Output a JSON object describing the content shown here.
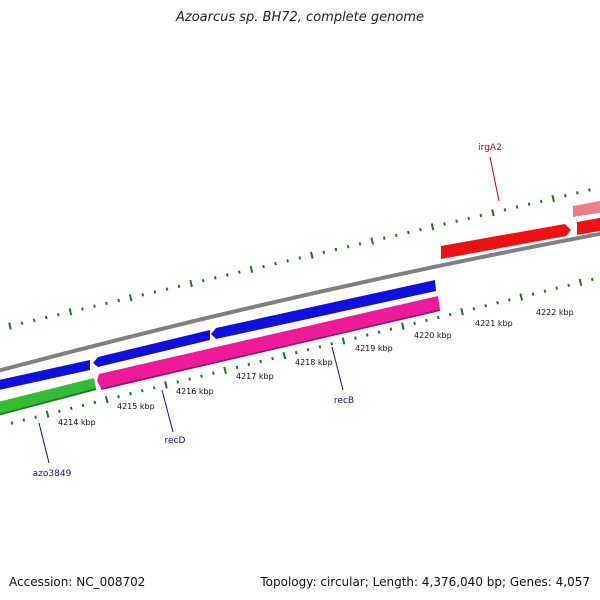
{
  "title": "Azoarcus sp. BH72, complete genome",
  "footer": {
    "accession": "Accession: NC_008702",
    "stats": "Topology: circular; Length: 4,376,040 bp; Genes: 4,057"
  },
  "colors": {
    "backbone": "#808080",
    "tick": "#1a7a1a",
    "blue_gene": "#1010dd",
    "pink_gene": "#ee1a99",
    "green_gene": "#33bb33",
    "red_gene": "#ee1111",
    "light_red_gene": "#e8808a",
    "blue_label": "#1010aa",
    "red_label": "#cc0000"
  },
  "scale_labels": [
    "4214 kbp",
    "4215 kbp",
    "4216 kbp",
    "4217 kbp",
    "4218 kbp",
    "4219 kbp",
    "4220 kbp",
    "4221 kbp",
    "4222 kbp"
  ],
  "genes": [
    {
      "label": "azo3849",
      "color": "green"
    },
    {
      "label": "recD",
      "color": "pink"
    },
    {
      "label": "recB",
      "color": "pink"
    },
    {
      "label": "irgA2",
      "color": "red"
    }
  ]
}
